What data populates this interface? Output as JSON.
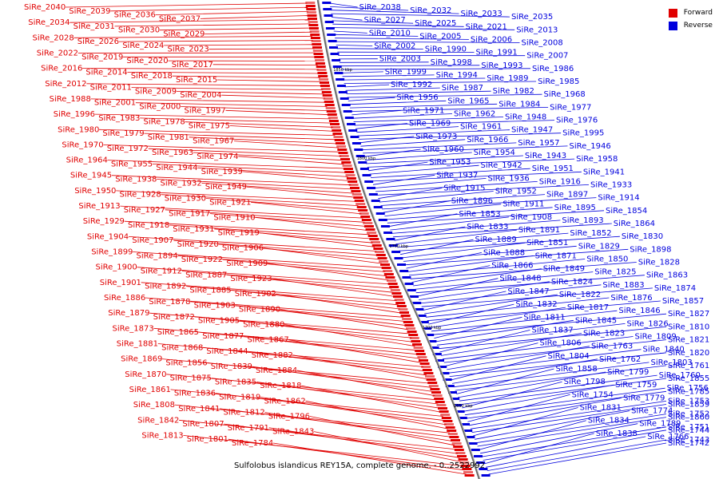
{
  "caption": "Sulfolobus islandicus REY15A, complete genome. - 0..2522992",
  "legend": [
    {
      "label": "Forward",
      "color": "#e00000"
    },
    {
      "label": "Reverse",
      "color": "#0000dd"
    }
  ],
  "ticks": [
    "1850 kbp",
    "1800 kbp",
    "1750 kbp",
    "1700 kbp",
    "1650 kbp"
  ],
  "forward_labels": [
    "SiRe_2040",
    "SiRe_2039",
    "SiRe_2036",
    "SiRe_2037",
    "SiRe_2034",
    "SiRe_2031",
    "SiRe_2030",
    "SiRe_2029",
    "SiRe_2028",
    "SiRe_2026",
    "SiRe_2024",
    "SiRe_2023",
    "SiRe_2022",
    "SiRe_2019",
    "SiRe_2020",
    "SiRe_2017",
    "SiRe_2016",
    "SiRe_2014",
    "SiRe_2018",
    "SiRe_2015",
    "SiRe_2012",
    "SiRe_2011",
    "SiRe_2009",
    "SiRe_2004",
    "SiRe_1988",
    "SiRe_2001",
    "SiRe_2000",
    "SiRe_1997",
    "SiRe_1996",
    "SiRe_1983",
    "SiRe_1978",
    "SiRe_1975",
    "SiRe_1980",
    "SiRe_1979",
    "SiRe_1981",
    "SiRe_1967",
    "SiRe_1970",
    "SiRe_1972",
    "SiRe_1963",
    "SiRe_1974",
    "SiRe_1964",
    "SiRe_1955",
    "SiRe_1944",
    "SiRe_1939",
    "SiRe_1945",
    "SiRe_1938",
    "SiRe_1932",
    "SiRe_1949",
    "SiRe_1950",
    "SiRe_1928",
    "SiRe_1930",
    "SiRe_1921",
    "SiRe_1913",
    "SiRe_1927",
    "SiRe_1917",
    "SiRe_1910",
    "SiRe_1929",
    "SiRe_1918",
    "SiRe_1931",
    "SiRe_1919",
    "SiRe_1904",
    "SiRe_1907",
    "SiRe_1920",
    "SiRe_1906",
    "SiRe_1899",
    "SiRe_1894",
    "SiRe_1922",
    "SiRe_1909",
    "SiRe_1900",
    "SiRe_1912",
    "SiRe_1887",
    "SiRe_1923",
    "SiRe_1901",
    "SiRe_1892",
    "SiRe_1885",
    "SiRe_1902",
    "SiRe_1886",
    "SiRe_1878",
    "SiRe_1903",
    "SiRe_1890",
    "SiRe_1879",
    "SiRe_1872",
    "SiRe_1905",
    "SiRe_1880",
    "SiRe_1873",
    "SiRe_1865",
    "SiRe_1877",
    "SiRe_1867",
    "SiRe_1881",
    "SiRe_1868",
    "SiRe_1844",
    "SiRe_1882",
    "SiRe_1869",
    "SiRe_1856",
    "SiRe_1839",
    "SiRe_1884",
    "SiRe_1870",
    "SiRe_1875",
    "SiRe_1835",
    "SiRe_1818",
    "SiRe_1861",
    "SiRe_1836",
    "SiRe_1819",
    "SiRe_1862",
    "SiRe_1808",
    "SiRe_1841",
    "SiRe_1812",
    "SiRe_1796",
    "SiRe_1842",
    "SiRe_1807",
    "SiRe_1791",
    "SiRe_1843",
    "SiRe_1813",
    "SiRe_1801",
    "SiRe_1784"
  ],
  "reverse_labels": [
    "SiRe_2038",
    "SiRe_2032",
    "SiRe_2033",
    "SiRe_2035",
    "SiRe_2027",
    "SiRe_2025",
    "SiRe_2021",
    "SiRe_2013",
    "SiRe_2010",
    "SiRe_2005",
    "SiRe_2006",
    "SiRe_2008",
    "SiRe_2002",
    "SiRe_1990",
    "SiRe_1991",
    "SiRe_2007",
    "SiRe_2003",
    "SiRe_1998",
    "SiRe_1993",
    "SiRe_1986",
    "SiRe_1999",
    "SiRe_1994",
    "SiRe_1989",
    "SiRe_1985",
    "SiRe_1992",
    "SiRe_1987",
    "SiRe_1982",
    "SiRe_1968",
    "SiRe_1956",
    "SiRe_1965",
    "SiRe_1984",
    "SiRe_1977",
    "SiRe_1971",
    "SiRe_1962",
    "SiRe_1948",
    "SiRe_1976",
    "SiRe_1969",
    "SiRe_1961",
    "SiRe_1947",
    "SiRe_1995",
    "SiRe_1973",
    "SiRe_1966",
    "SiRe_1957",
    "SiRe_1946",
    "SiRe_1960",
    "SiRe_1954",
    "SiRe_1943",
    "SiRe_1958",
    "SiRe_1953",
    "SiRe_1942",
    "SiRe_1951",
    "SiRe_1941",
    "SiRe_1937",
    "SiRe_1936",
    "SiRe_1916",
    "SiRe_1933",
    "SiRe_1915",
    "SiRe_1952",
    "SiRe_1897",
    "SiRe_1914",
    "SiRe_1896",
    "SiRe_1911",
    "SiRe_1895",
    "SiRe_1854",
    "SiRe_1853",
    "SiRe_1908",
    "SiRe_1893",
    "SiRe_1864",
    "SiRe_1833",
    "SiRe_1891",
    "SiRe_1852",
    "SiRe_1830",
    "SiRe_1889",
    "SiRe_1851",
    "SiRe_1829",
    "SiRe_1898",
    "SiRe_1888",
    "SiRe_1871",
    "SiRe_1850",
    "SiRe_1828",
    "SiRe_1866",
    "SiRe_1849",
    "SiRe_1825",
    "SiRe_1863",
    "SiRe_1848",
    "SiRe_1824",
    "SiRe_1883",
    "SiRe_1874",
    "SiRe_1847",
    "SiRe_1822",
    "SiRe_1876",
    "SiRe_1857",
    "SiRe_1832",
    "SiRe_1817",
    "SiRe_1846",
    "SiRe_1827",
    "SiRe_1811",
    "SiRe_1845",
    "SiRe_1826",
    "SiRe_1810",
    "SiRe_1837",
    "SiRe_1823",
    "SiRe_1809",
    "SiRe_1821",
    "SiRe_1806",
    "SiRe_1763",
    "SiRe_1840",
    "SiRe_1820",
    "SiRe_1804",
    "SiRe_1762",
    "SiRe_1803",
    "SiRe_1761",
    "SiRe_1858",
    "SiRe_1799",
    "SiRe_1760",
    "SiRe_1855",
    "SiRe_1798",
    "SiRe_1759",
    "SiRe_1756",
    "SiRe_1785",
    "SiRe_1754",
    "SiRe_1779",
    "SiRe_1753",
    "SiRe_1859",
    "SiRe_1831",
    "SiRe_1774",
    "SiRe_1752",
    "SiRe_1860",
    "SiRe_1834",
    "SiRe_1789",
    "SiRe_1751",
    "SiRe_1744",
    "SiRe_1838",
    "SiRe_1766",
    "SiRe_1743",
    "SiRe_1742"
  ]
}
